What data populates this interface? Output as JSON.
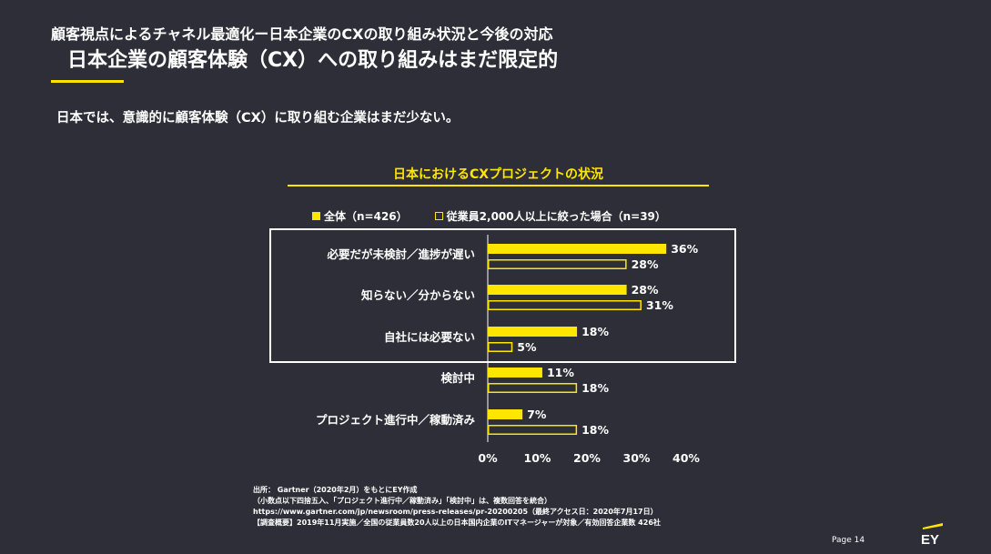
{
  "header": {
    "line1": "顧客視点によるチャネル最適化ー日本企業のCXの取り組み状況と今後の対応",
    "line2": "日本企業の顧客体験（CX）への取り組みはまだ限定的"
  },
  "lead_text": "日本では、意識的に顧客体験（CX）に取り組む企業はまだ少ない。",
  "legend": {
    "series1": "全体（n=426）",
    "series2": "従業員2,000人以上に絞った場合（n=39）"
  },
  "chart_data": {
    "type": "bar",
    "orientation": "horizontal",
    "title": "日本におけるCXプロジェクトの状況",
    "categories": [
      "必要だが未検討／進捗が遅い",
      "知らない／分からない",
      "自社には必要ない",
      "検討中",
      "プロジェクト進行中／稼動済み"
    ],
    "series": [
      {
        "name": "全体（n=426）",
        "style": "filled",
        "values": [
          36,
          28,
          18,
          11,
          7
        ]
      },
      {
        "name": "従業員2,000人以上に絞った場合（n=39）",
        "style": "outline",
        "values": [
          28,
          31,
          5,
          18,
          18
        ]
      }
    ],
    "value_suffix": "%",
    "xlim": [
      0,
      40
    ],
    "xticks": [
      "0%",
      "10%",
      "20%",
      "30%",
      "40%"
    ],
    "highlight_box_categories": [
      0,
      1,
      2
    ],
    "accent_color": "#ffe600",
    "background_color": "#2e2e38"
  },
  "source": {
    "line1": "出所：  Gartner（2020年2月）をもとにEY作成",
    "line2": "（小数点以下四捨五入、「プロジェクト進行中／稼動済み」「検討中」は、複数回答を統合）",
    "line3": "https://www.gartner.com/jp/newsroom/press-releases/pr-20200205（最終アクセス日：2020年7月17日）",
    "line4": "【調査概要】2019年11月実施／全国の従業員数20人以上の日本国内企業のITマネージャーが対象／有効回答企業数 426社"
  },
  "footer": {
    "page": "Page 14",
    "logo_text": "EY"
  }
}
